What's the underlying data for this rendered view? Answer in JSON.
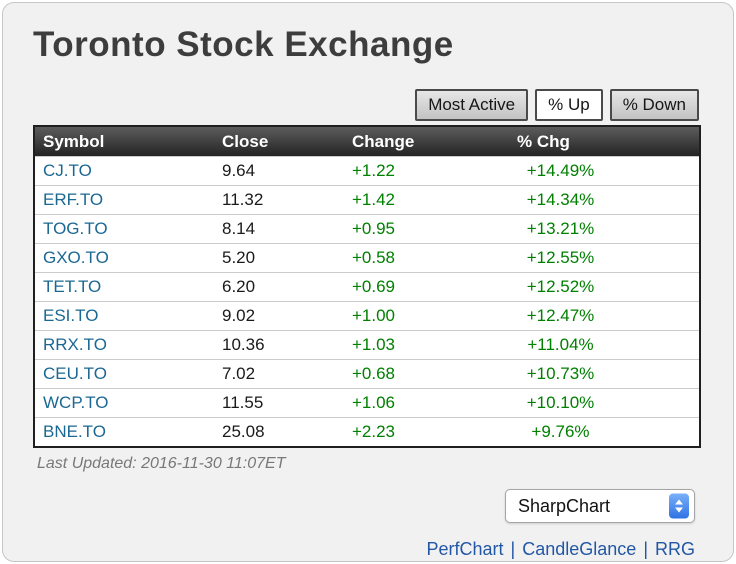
{
  "header": {
    "title": "Toronto Stock Exchange"
  },
  "tabs": [
    {
      "label": "Most Active",
      "selected": false
    },
    {
      "label": "% Up",
      "selected": true
    },
    {
      "label": "% Down",
      "selected": false
    }
  ],
  "table": {
    "columns": [
      "Symbol",
      "Close",
      "Change",
      "% Chg"
    ],
    "rows": [
      {
        "symbol": "CJ.TO",
        "close": "9.64",
        "change": "+1.22",
        "pct": "+14.49%"
      },
      {
        "symbol": "ERF.TO",
        "close": "11.32",
        "change": "+1.42",
        "pct": "+14.34%"
      },
      {
        "symbol": "TOG.TO",
        "close": "8.14",
        "change": "+0.95",
        "pct": "+13.21%"
      },
      {
        "symbol": "GXO.TO",
        "close": "5.20",
        "change": "+0.58",
        "pct": "+12.55%"
      },
      {
        "symbol": "TET.TO",
        "close": "6.20",
        "change": "+0.69",
        "pct": "+12.52%"
      },
      {
        "symbol": "ESI.TO",
        "close": "9.02",
        "change": "+1.00",
        "pct": "+12.47%"
      },
      {
        "symbol": "RRX.TO",
        "close": "10.36",
        "change": "+1.03",
        "pct": "+11.04%"
      },
      {
        "symbol": "CEU.TO",
        "close": "7.02",
        "change": "+0.68",
        "pct": "+10.73%"
      },
      {
        "symbol": "WCP.TO",
        "close": "11.55",
        "change": "+1.06",
        "pct": "+10.10%"
      },
      {
        "symbol": "BNE.TO",
        "close": "25.08",
        "change": "+2.23",
        "pct": "+9.76%"
      }
    ]
  },
  "footer": {
    "last_updated": "Last Updated: 2016-11-30 11:07ET",
    "chart_select_value": "SharpChart",
    "link_separator": "|",
    "links": [
      {
        "label": "PerfChart"
      },
      {
        "label": "CandleGlance"
      },
      {
        "label": "RRG"
      }
    ]
  },
  "colors": {
    "symbol_blue": "#1b6893",
    "change_green": "#008000",
    "link_blue": "#2257a5",
    "accent_blue": "#2f72e4",
    "accent_blue_light": "#7ab0f9"
  }
}
